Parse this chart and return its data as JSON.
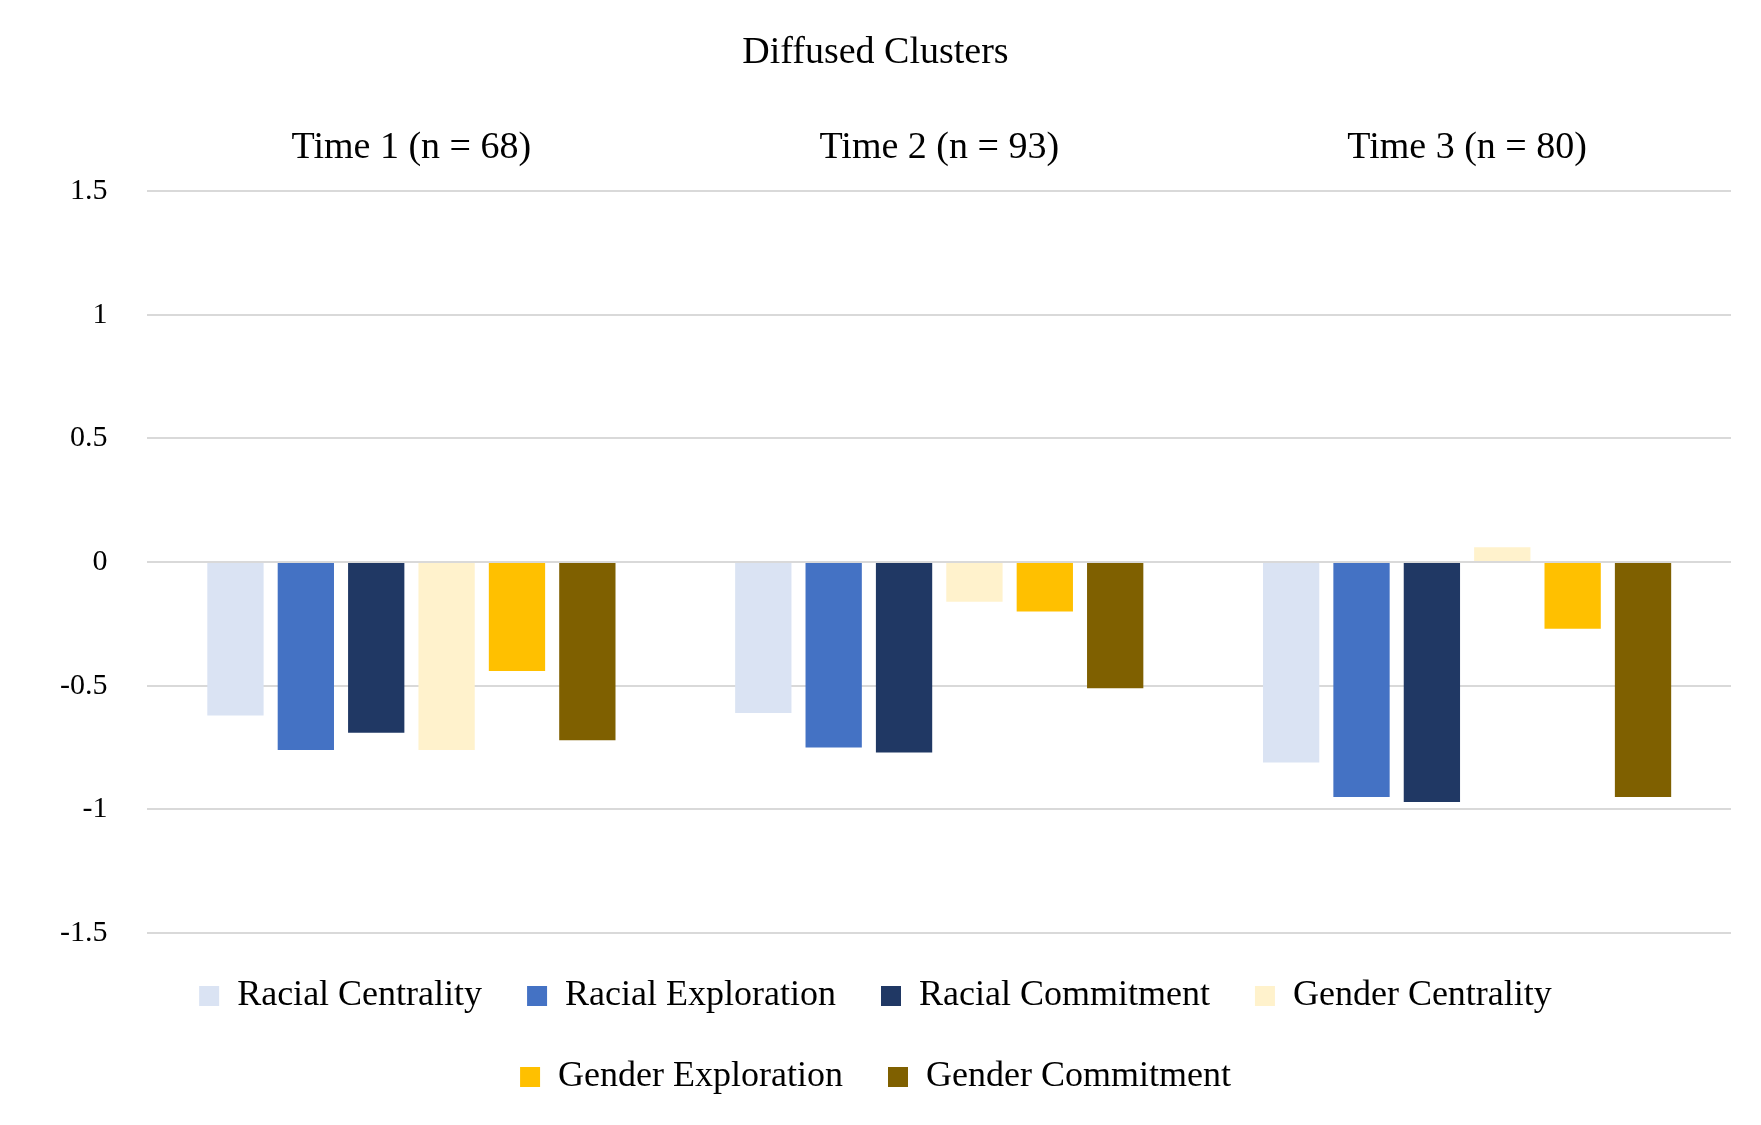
{
  "chart_data": {
    "type": "bar",
    "title": "Diffused Clusters",
    "categories": [
      "Time 1 (n = 68)",
      "Time 2 (n = 93)",
      "Time 3 (n = 80)"
    ],
    "series": [
      {
        "name": "Racial Centrality",
        "color": "#dae3f3",
        "values": [
          -0.62,
          -0.61,
          -0.81
        ]
      },
      {
        "name": "Racial Exploration",
        "color": "#4472c4",
        "values": [
          -0.76,
          -0.75,
          -0.95
        ]
      },
      {
        "name": "Racial Commitment",
        "color": "#203864",
        "values": [
          -0.69,
          -0.77,
          -0.97
        ]
      },
      {
        "name": "Gender Centrality",
        "color": "#fff2cc",
        "values": [
          -0.76,
          -0.16,
          0.06
        ]
      },
      {
        "name": "Gender Exploration",
        "color": "#ffc000",
        "values": [
          -0.44,
          -0.2,
          -0.27
        ]
      },
      {
        "name": "Gender Commitment",
        "color": "#7f6000",
        "values": [
          -0.72,
          -0.51,
          -0.95
        ]
      }
    ],
    "ylim": [
      -1.5,
      1.5
    ],
    "yticks": [
      -1.5,
      -1,
      -0.5,
      0,
      0.5,
      1,
      1.5
    ],
    "grid": "y",
    "legend": "bottom"
  }
}
